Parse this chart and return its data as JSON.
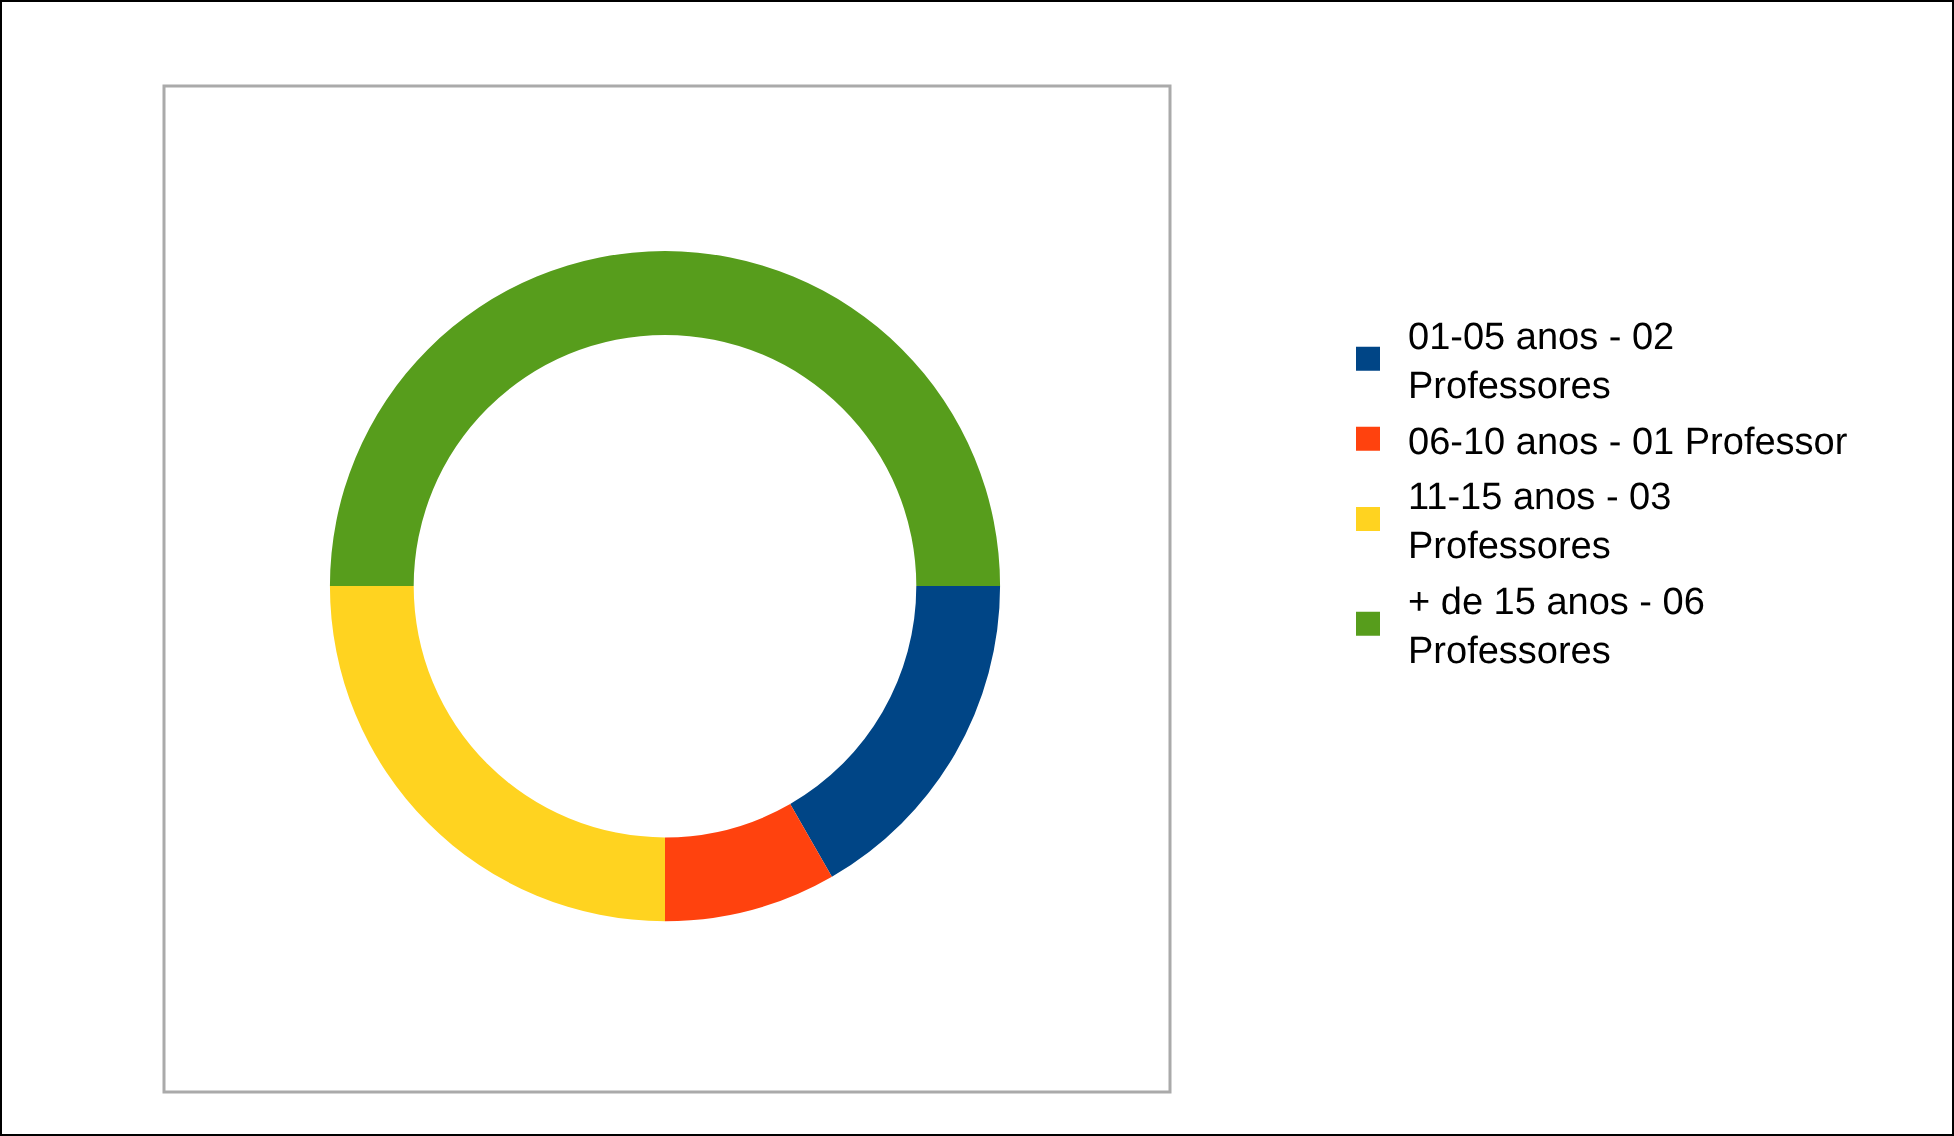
{
  "chart_data": {
    "type": "donut",
    "categories": [
      "01-05 anos - 02 Professores",
      "06-10 anos - 01 Professor",
      "11-15 anos - 03 Professores",
      "+ de 15 anos - 06 Professores"
    ],
    "values": [
      16.7,
      8.3,
      25,
      50
    ],
    "colors": [
      "#004586",
      "#ff420e",
      "#ffd320",
      "#579d1c"
    ],
    "legend": "right"
  }
}
